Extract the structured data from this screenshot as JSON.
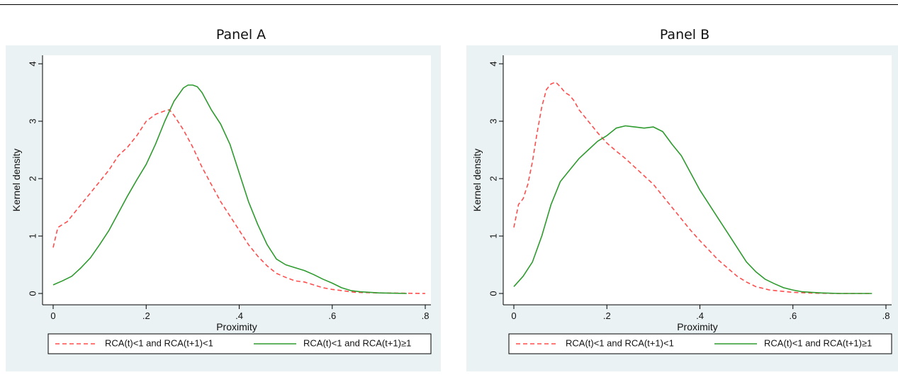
{
  "panels": [
    {
      "title": "Panel A"
    },
    {
      "title": "Panel B"
    }
  ],
  "chart_data": [
    {
      "type": "line",
      "title": "Panel A",
      "xlabel": "Proximity",
      "ylabel": "Kernel density",
      "xlim": [
        0,
        0.8
      ],
      "ylim": [
        0,
        4
      ],
      "xticks": [
        0,
        0.2,
        0.4,
        0.6,
        0.8
      ],
      "xtick_labels": [
        "0",
        ".2",
        ".4",
        ".6",
        ".8"
      ],
      "yticks": [
        0,
        1,
        2,
        3,
        4
      ],
      "ytick_labels": [
        "0",
        "1",
        "2",
        "3",
        "4"
      ],
      "grid": false,
      "legend_position": "bottom",
      "series": [
        {
          "name": "RCA(t)<1 and RCA(t+1)<1",
          "color": "#ff4d4d",
          "style": "dashed",
          "x": [
            0,
            0.01,
            0.02,
            0.03,
            0.04,
            0.05,
            0.06,
            0.08,
            0.1,
            0.12,
            0.14,
            0.16,
            0.18,
            0.2,
            0.22,
            0.24,
            0.25,
            0.26,
            0.28,
            0.3,
            0.32,
            0.34,
            0.36,
            0.38,
            0.4,
            0.42,
            0.44,
            0.46,
            0.48,
            0.5,
            0.52,
            0.54,
            0.56,
            0.58,
            0.6,
            0.62,
            0.65,
            0.7,
            0.75,
            0.8
          ],
          "y": [
            0.8,
            1.15,
            1.2,
            1.25,
            1.35,
            1.45,
            1.55,
            1.75,
            1.95,
            2.15,
            2.4,
            2.55,
            2.75,
            3.0,
            3.12,
            3.18,
            3.2,
            3.1,
            2.85,
            2.55,
            2.2,
            1.9,
            1.6,
            1.35,
            1.1,
            0.85,
            0.65,
            0.48,
            0.35,
            0.28,
            0.22,
            0.2,
            0.15,
            0.1,
            0.07,
            0.05,
            0.02,
            0.01,
            0.005,
            0.0
          ]
        },
        {
          "name": "RCA(t)<1 and RCA(t+1)≥1",
          "color": "#2e9b2e",
          "style": "solid",
          "x": [
            0,
            0.02,
            0.04,
            0.06,
            0.08,
            0.1,
            0.12,
            0.14,
            0.16,
            0.18,
            0.2,
            0.22,
            0.24,
            0.26,
            0.28,
            0.29,
            0.3,
            0.31,
            0.32,
            0.34,
            0.36,
            0.38,
            0.4,
            0.42,
            0.44,
            0.46,
            0.48,
            0.5,
            0.52,
            0.54,
            0.56,
            0.58,
            0.6,
            0.62,
            0.64,
            0.66,
            0.7,
            0.76
          ],
          "y": [
            0.15,
            0.22,
            0.3,
            0.45,
            0.62,
            0.85,
            1.1,
            1.4,
            1.7,
            1.98,
            2.25,
            2.6,
            3.0,
            3.35,
            3.58,
            3.63,
            3.63,
            3.6,
            3.5,
            3.2,
            2.95,
            2.6,
            2.1,
            1.6,
            1.2,
            0.85,
            0.6,
            0.5,
            0.45,
            0.4,
            0.33,
            0.25,
            0.18,
            0.1,
            0.05,
            0.03,
            0.01,
            0.0
          ]
        }
      ]
    },
    {
      "type": "line",
      "title": "Panel B",
      "xlabel": "Proximity",
      "ylabel": "Kernel density",
      "xlim": [
        0,
        0.8
      ],
      "ylim": [
        0,
        4
      ],
      "xticks": [
        0,
        0.2,
        0.4,
        0.6,
        0.8
      ],
      "xtick_labels": [
        "0",
        ".2",
        ".4",
        ".6",
        ".8"
      ],
      "yticks": [
        0,
        1,
        2,
        3,
        4
      ],
      "ytick_labels": [
        "0",
        "1",
        "2",
        "3",
        "4"
      ],
      "grid": false,
      "legend_position": "bottom",
      "series": [
        {
          "name": "RCA(t)<1 and RCA(t+1)<1",
          "color": "#ff4d4d",
          "style": "dashed",
          "x": [
            0,
            0.01,
            0.02,
            0.03,
            0.04,
            0.05,
            0.06,
            0.07,
            0.08,
            0.09,
            0.1,
            0.11,
            0.12,
            0.13,
            0.14,
            0.16,
            0.18,
            0.2,
            0.22,
            0.24,
            0.26,
            0.28,
            0.3,
            0.32,
            0.34,
            0.36,
            0.38,
            0.4,
            0.42,
            0.44,
            0.46,
            0.48,
            0.5,
            0.52,
            0.55,
            0.6,
            0.65,
            0.7,
            0.77
          ],
          "y": [
            1.15,
            1.55,
            1.65,
            1.9,
            2.3,
            2.8,
            3.25,
            3.55,
            3.65,
            3.68,
            3.6,
            3.5,
            3.45,
            3.35,
            3.2,
            3.0,
            2.8,
            2.62,
            2.48,
            2.35,
            2.2,
            2.05,
            1.9,
            1.7,
            1.5,
            1.3,
            1.1,
            0.92,
            0.75,
            0.58,
            0.44,
            0.3,
            0.2,
            0.12,
            0.06,
            0.02,
            0.005,
            0.0,
            0.0
          ]
        },
        {
          "name": "RCA(t)<1 and RCA(t+1)≥1",
          "color": "#2e9b2e",
          "style": "solid",
          "x": [
            0,
            0.02,
            0.04,
            0.06,
            0.08,
            0.1,
            0.12,
            0.14,
            0.16,
            0.18,
            0.2,
            0.22,
            0.24,
            0.26,
            0.28,
            0.3,
            0.32,
            0.34,
            0.36,
            0.38,
            0.4,
            0.42,
            0.44,
            0.46,
            0.48,
            0.5,
            0.52,
            0.54,
            0.56,
            0.58,
            0.6,
            0.62,
            0.64,
            0.66,
            0.7,
            0.77
          ],
          "y": [
            0.12,
            0.3,
            0.55,
            1.0,
            1.55,
            1.95,
            2.15,
            2.35,
            2.5,
            2.65,
            2.75,
            2.88,
            2.92,
            2.9,
            2.88,
            2.9,
            2.82,
            2.6,
            2.4,
            2.1,
            1.8,
            1.55,
            1.3,
            1.05,
            0.8,
            0.55,
            0.38,
            0.25,
            0.17,
            0.1,
            0.06,
            0.03,
            0.02,
            0.01,
            0.0,
            0.0
          ]
        }
      ]
    }
  ]
}
